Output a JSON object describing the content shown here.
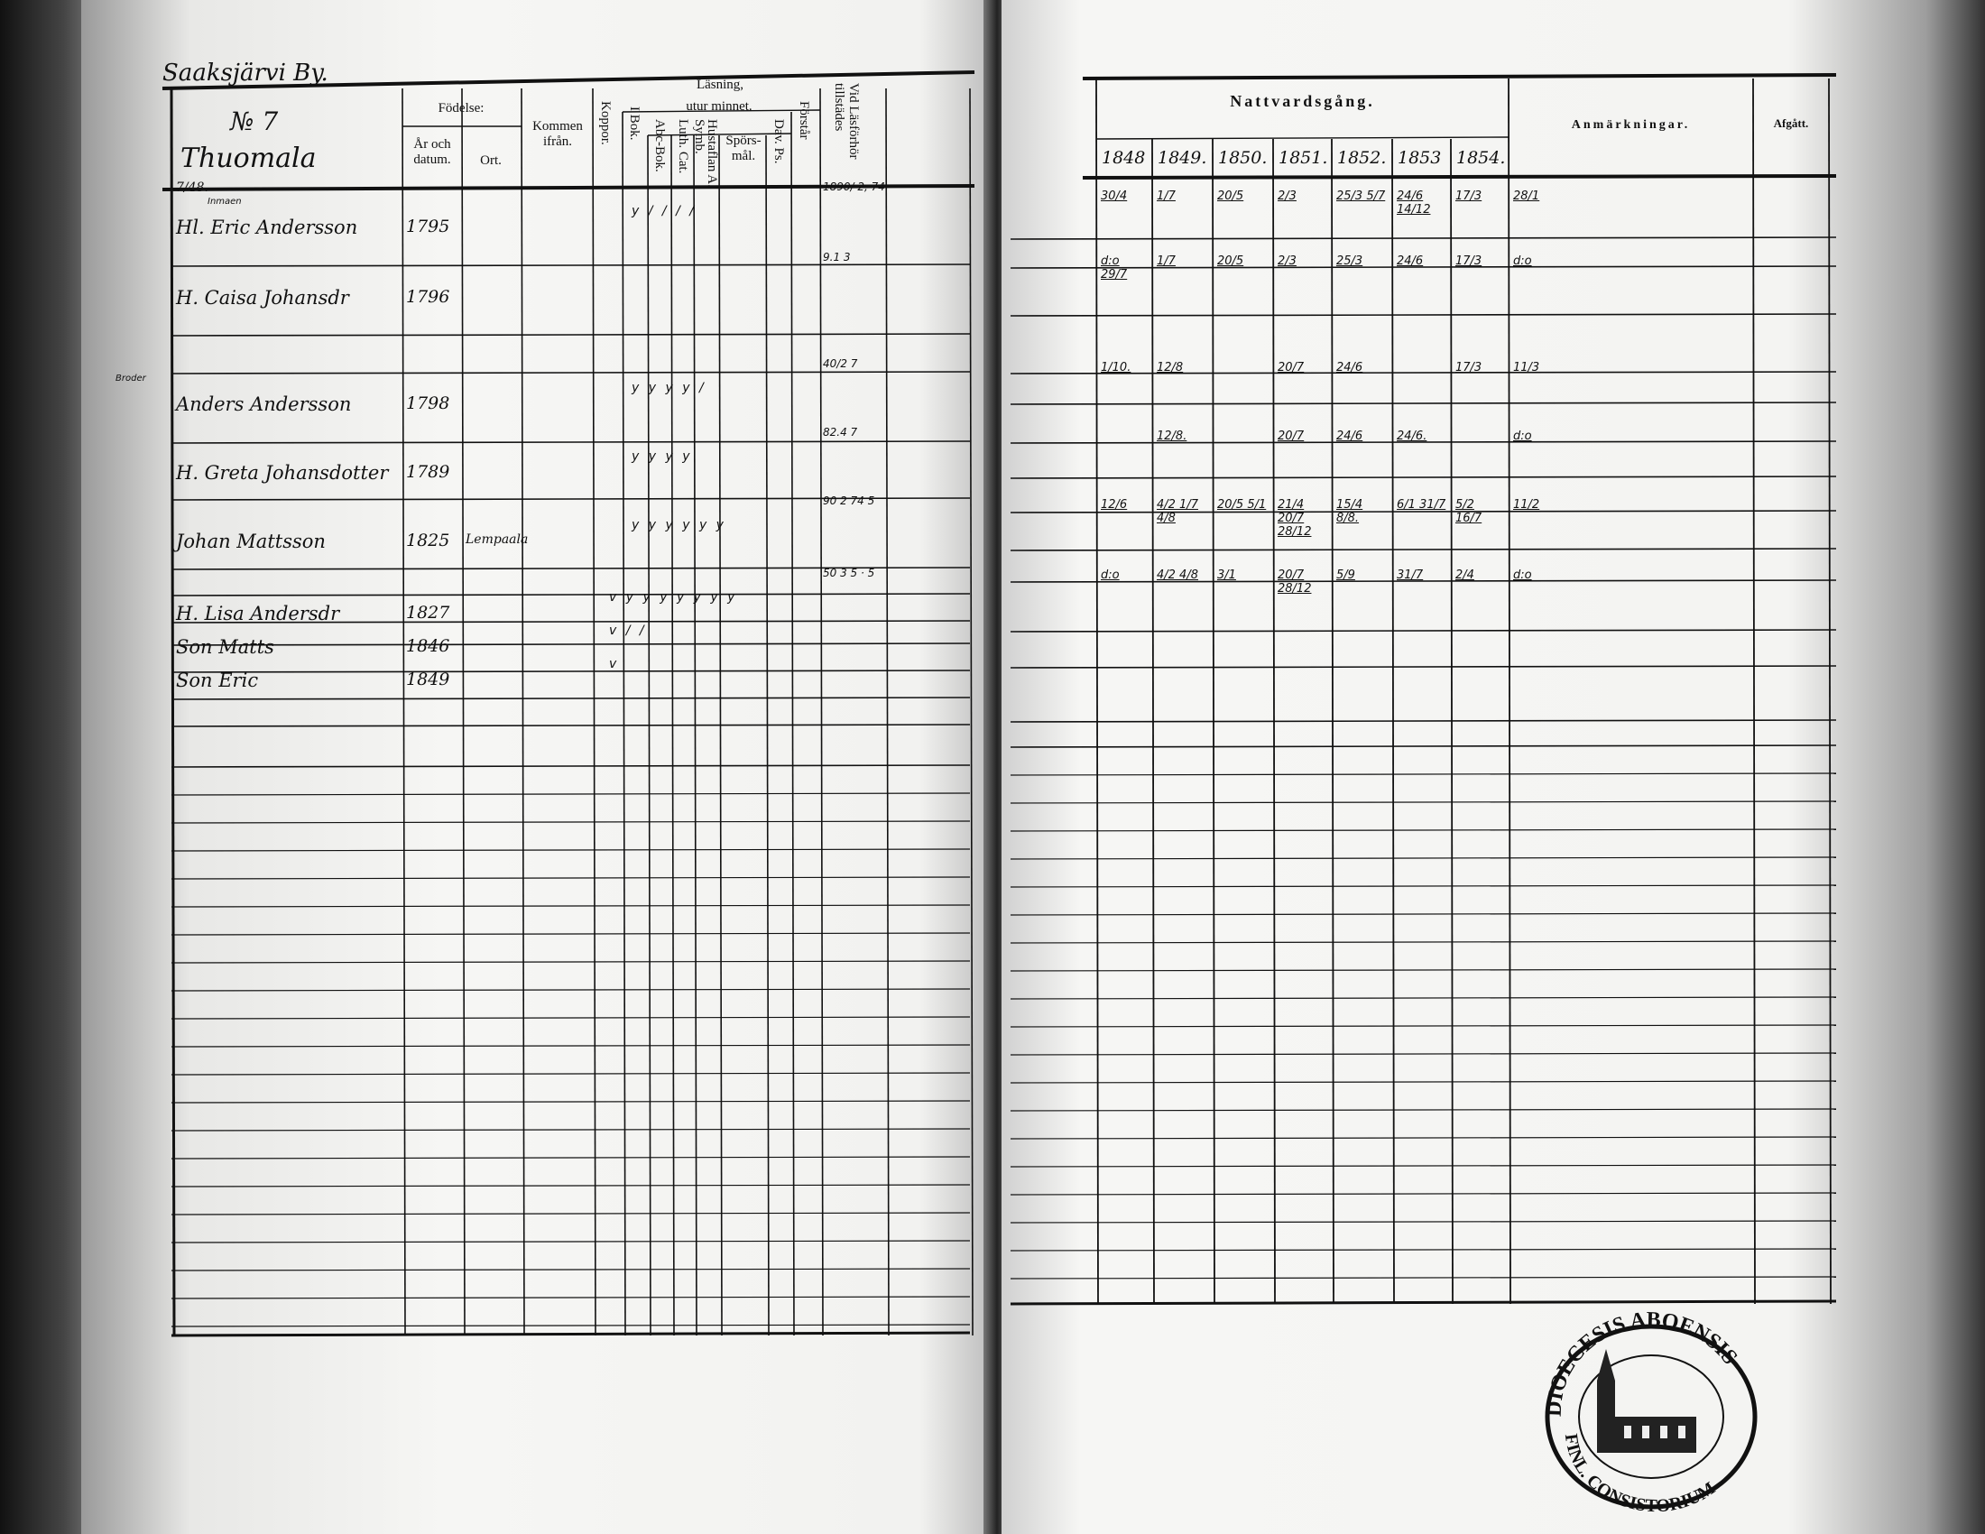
{
  "left_page": {
    "village": "Saaksjärvi By.",
    "number": "№ 7",
    "farm": "Thuomala",
    "farm_fraction": "7/48.",
    "headers": {
      "fodelse": "Födelse:",
      "ar_och_datum": "År och datum.",
      "ort": "Ort.",
      "kommen_ifran": "Kommen ifrån.",
      "koppor": "Koppor.",
      "lasning": "Läsning,",
      "utur_minnet": "utur minnet.",
      "i_bok": "I Bok.",
      "abc_bok": "Abc-Bok.",
      "luth_cat": "Luth. Cat.",
      "hustaflan": "Hustaflan A. Symb.",
      "sporsmal": "Spörs-mål.",
      "dav_ps": "Dav. Ps.",
      "forstar": "Förstår",
      "vid_lasforhor": "Vid Läsförhör tillstädes"
    },
    "persons": [
      {
        "note": "Inmaen",
        "name": "Hl. Eric Andersson",
        "birth": "1795",
        "place": "",
        "marks": "y  /  /  /  /",
        "forhor": "1890/ 2, 74"
      },
      {
        "note": "",
        "name": "H. Caisa Johansdr",
        "birth": "1796",
        "place": "",
        "marks": "",
        "forhor": "9.1 3"
      },
      {
        "note": "Broder",
        "name": "Anders Andersson",
        "birth": "1798",
        "place": "",
        "marks": "y  y  y  y  /",
        "forhor": "40/2 7"
      },
      {
        "note": "",
        "name": "H. Greta Johansdotter",
        "birth": "1789",
        "place": "",
        "marks": "y  y  y  y",
        "forhor": "82.4 7"
      },
      {
        "note": "",
        "name": "Johan Mattsson",
        "birth": "1825",
        "place": "Lempaala",
        "marks": "y  y  y  y  y  y",
        "forhor": "90 2 74  5"
      },
      {
        "note": "",
        "name": "H. Lisa Andersdr",
        "birth": "1827",
        "place": "",
        "marks": "v  y y  y  y  y  y  y",
        "forhor": "50 3  5 · 5"
      },
      {
        "note": "",
        "name": "Son Matts",
        "birth": "1846",
        "place": "",
        "marks": "v  /   /",
        "forhor": ""
      },
      {
        "note": "",
        "name": "Son Eric",
        "birth": "1849",
        "place": "",
        "marks": "v",
        "forhor": ""
      }
    ]
  },
  "right_page": {
    "nattvardsgang": "Nattvardsgång.",
    "anmarkningar": "Anmärkningar.",
    "afgatt": "Afgått.",
    "years": [
      "1848",
      "1849.",
      "1850.",
      "1851.",
      "1852.",
      "1853",
      "1854."
    ],
    "communion_rows": [
      [
        "30/4",
        "1/7",
        "20/5",
        "2/3",
        "25/3 5/7",
        "24/6 14/12",
        "17/3",
        "28/1"
      ],
      [
        "d:o 29/7",
        "1/7",
        "20/5",
        "2/3",
        "25/3",
        "24/6",
        "17/3",
        "d:o"
      ],
      [
        "1/10.",
        "12/8",
        "",
        "20/7",
        "24/6",
        "",
        "17/3",
        "11/3"
      ],
      [
        "",
        "12/8.",
        "",
        "20/7",
        "24/6",
        "24/6.",
        "",
        "d:o"
      ],
      [
        "12/6",
        "4/2 1/7 4/8",
        "20/5 5/1",
        "21/4 20/7 28/12",
        "15/4 8/8.",
        "6/1 31/7",
        "5/2 16/7",
        "11/2"
      ],
      [
        "d:o",
        "4/2 4/8",
        "3/1",
        "20/7 28/12",
        "5/9",
        "31/7",
        "2/4",
        "d:o"
      ]
    ]
  },
  "stamp": {
    "text": "DIOECESIS ABOENSIS",
    "text_lower": "FINL. CONSISTORIUM"
  },
  "colors": {
    "ink": "#111111",
    "paper": "#f4f4f2",
    "scan_edge": "#2a2a2a"
  }
}
